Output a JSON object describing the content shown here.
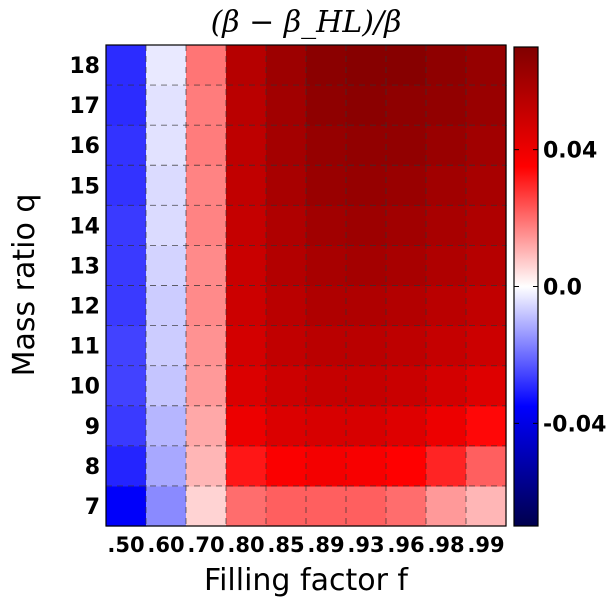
{
  "chart_data": {
    "type": "heatmap",
    "title": "(β − β_HL)/β",
    "xlabel": "Filling factor f",
    "ylabel": "Mass ratio q",
    "x_categories": [
      ".50",
      ".60",
      ".70",
      ".80",
      ".85",
      ".89",
      ".93",
      ".96",
      ".98",
      ".99"
    ],
    "y_categories": [
      "7",
      "8",
      "9",
      "10",
      "11",
      "12",
      "13",
      "14",
      "15",
      "16",
      "17",
      "18"
    ],
    "values": [
      [
        -0.036,
        -0.016,
        0.006,
        0.02,
        0.022,
        0.022,
        0.022,
        0.02,
        0.014,
        0.01
      ],
      [
        -0.03,
        -0.012,
        0.01,
        0.032,
        0.036,
        0.038,
        0.037,
        0.035,
        0.03,
        0.022
      ],
      [
        -0.027,
        -0.01,
        0.012,
        0.04,
        0.045,
        0.046,
        0.046,
        0.044,
        0.04,
        0.034
      ],
      [
        -0.026,
        -0.008,
        0.014,
        0.045,
        0.049,
        0.051,
        0.051,
        0.05,
        0.047,
        0.044
      ],
      [
        -0.026,
        -0.007,
        0.015,
        0.047,
        0.052,
        0.054,
        0.054,
        0.053,
        0.051,
        0.049
      ],
      [
        -0.027,
        -0.007,
        0.016,
        0.049,
        0.054,
        0.057,
        0.057,
        0.056,
        0.054,
        0.052
      ],
      [
        -0.027,
        -0.006,
        0.016,
        0.05,
        0.056,
        0.059,
        0.06,
        0.059,
        0.057,
        0.055
      ],
      [
        -0.027,
        -0.005,
        0.017,
        0.051,
        0.057,
        0.061,
        0.062,
        0.061,
        0.059,
        0.057
      ],
      [
        -0.028,
        -0.005,
        0.017,
        0.052,
        0.059,
        0.063,
        0.064,
        0.063,
        0.061,
        0.059
      ],
      [
        -0.028,
        -0.004,
        0.018,
        0.053,
        0.06,
        0.064,
        0.065,
        0.065,
        0.063,
        0.061
      ],
      [
        -0.029,
        -0.004,
        0.018,
        0.054,
        0.061,
        0.066,
        0.067,
        0.066,
        0.065,
        0.063
      ],
      [
        -0.029,
        -0.003,
        0.019,
        0.055,
        0.062,
        0.067,
        0.068,
        0.068,
        0.066,
        0.064
      ]
    ],
    "colorbar": {
      "cmap": "seismic",
      "vmin": -0.07,
      "vmax": 0.07,
      "ticks": [
        {
          "value": 0.04,
          "label": "0.04"
        },
        {
          "value": 0.0,
          "label": "0.0"
        },
        {
          "value": -0.04,
          "label": "-0.04"
        }
      ]
    },
    "grid": true,
    "grid_style": "dashed"
  }
}
